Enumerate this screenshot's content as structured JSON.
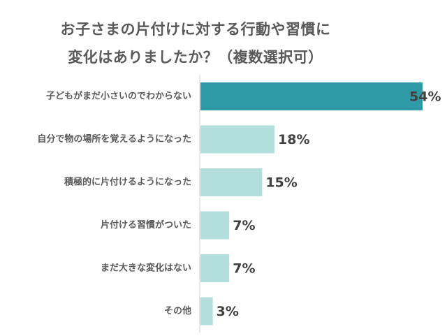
{
  "chart_data": {
    "type": "bar",
    "orientation": "horizontal",
    "title_lines": [
      "お子さまの片付けに対する行動や習慣に",
      "変化はありましたか？（複数選択可）"
    ],
    "categories": [
      "子どもがまだ小さいのでわからない",
      "自分で物の場所を覚えるようになった",
      "積極的に片付けるようになった",
      "片付ける習慣がついた",
      "まだ大きな変化はない",
      "その他"
    ],
    "values": [
      54,
      18,
      15,
      7,
      7,
      3
    ],
    "value_labels": [
      "54%",
      "18%",
      "15%",
      "7%",
      "7%",
      "3%"
    ],
    "xlim": [
      0,
      54
    ],
    "grid": false,
    "legend": "none",
    "colors": {
      "highlight": "#2e9aa5",
      "bar": "#b2dfdc",
      "axis": "#d0d0d0"
    }
  }
}
